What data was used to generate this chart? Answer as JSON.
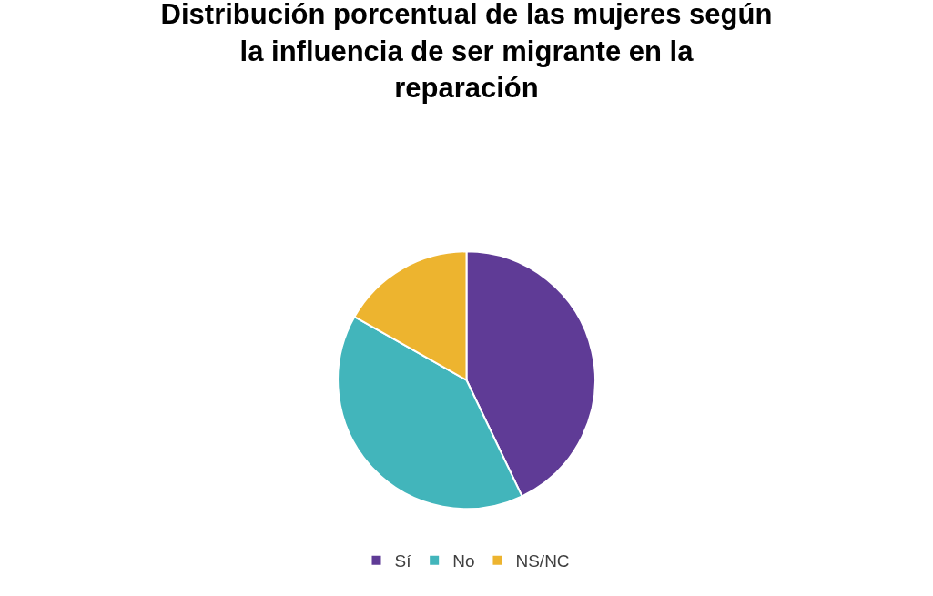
{
  "chart_data": {
    "type": "pie",
    "title": "Distribución porcentual de las mujeres según la influencia de ser migrante en la reparación",
    "categories": [
      "Sí",
      "No",
      "NS/NC"
    ],
    "values": [
      42.9,
      40.3,
      16.8
    ],
    "colors": [
      "#5f3b96",
      "#42b5bb",
      "#edb42f"
    ],
    "legend": "bottom"
  }
}
